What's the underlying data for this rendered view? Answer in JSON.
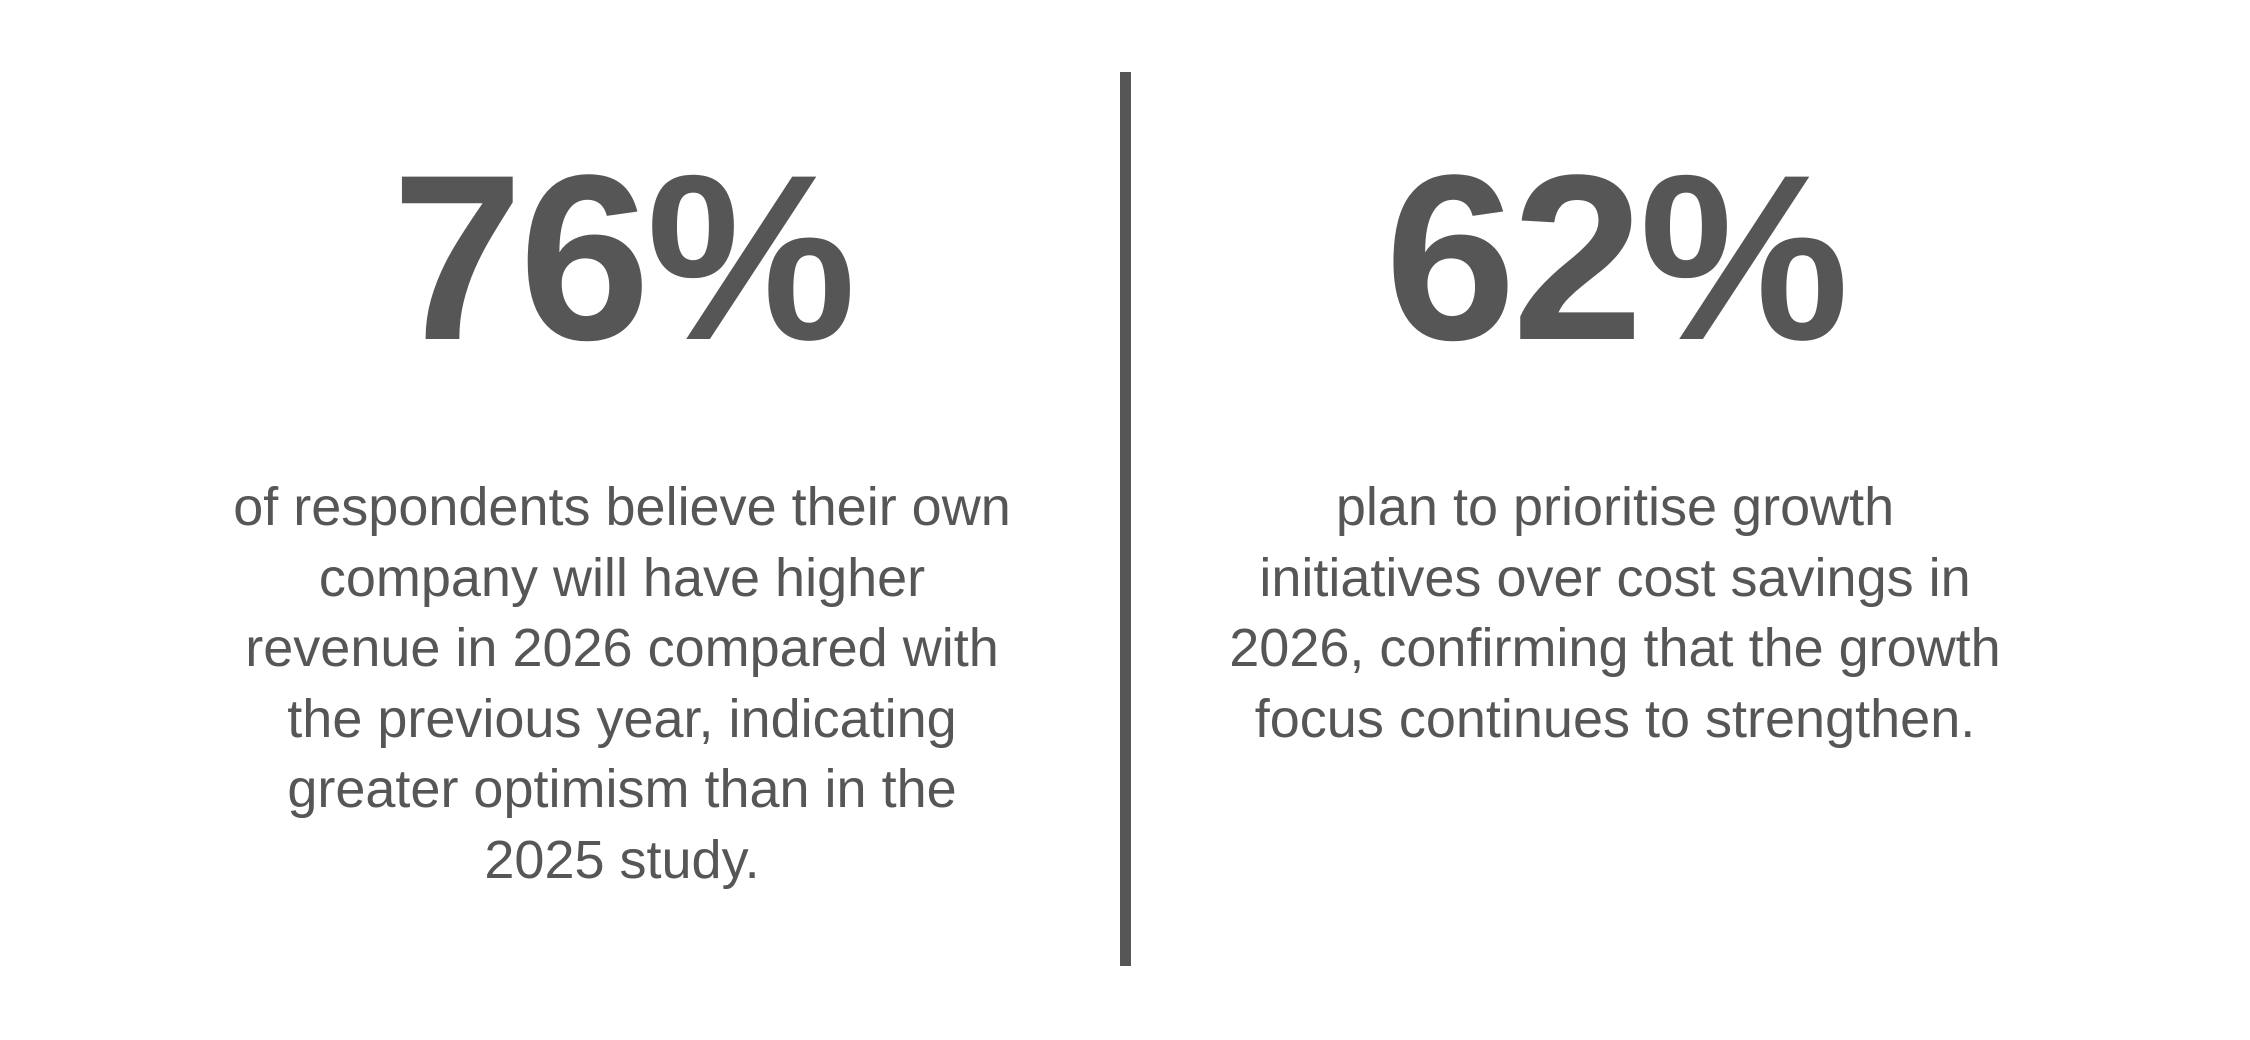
{
  "stats": [
    {
      "figure": "76%",
      "description": [
        "of respondents believe their own",
        "company will have higher",
        "revenue in 2026 compared with",
        "the previous year, indicating",
        "greater optimism than in the",
        "2025 study."
      ]
    },
    {
      "figure": "62%",
      "description": [
        "plan to prioritise growth",
        "initiatives over cost savings in",
        "2026, confirming that the growth",
        "focus continues to strengthen."
      ]
    }
  ]
}
